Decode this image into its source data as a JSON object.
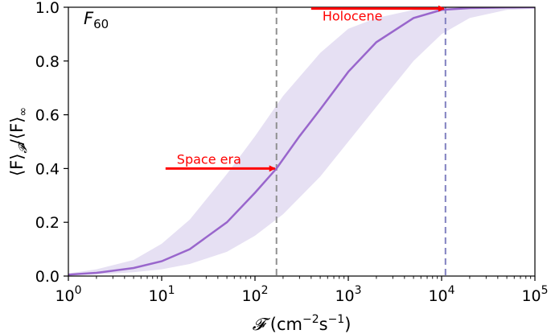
{
  "chart_data": {
    "type": "line",
    "panel_label": {
      "main": "F",
      "sub": "60"
    },
    "xlabel": {
      "symbol": "𝓕",
      "text": " (cm",
      "exp1": "−2",
      "mid": "s",
      "exp2": "−1",
      "close": ")"
    },
    "ylabel": {
      "text": "⟨F⟩",
      "sub1": "𝓕",
      "mid": "/⟨F⟩",
      "sub2": "∞"
    },
    "x_scale": "log",
    "xlim": [
      1,
      100000
    ],
    "ylim": [
      0,
      1.0
    ],
    "x_ticks": [
      {
        "value": 1,
        "base": "10",
        "exp": "0"
      },
      {
        "value": 10,
        "base": "10",
        "exp": "1"
      },
      {
        "value": 100,
        "base": "10",
        "exp": "2"
      },
      {
        "value": 1000,
        "base": "10",
        "exp": "3"
      },
      {
        "value": 10000,
        "base": "10",
        "exp": "4"
      },
      {
        "value": 100000,
        "base": "10",
        "exp": "5"
      }
    ],
    "y_ticks": [
      {
        "value": 0.0,
        "label": "0.0"
      },
      {
        "value": 0.2,
        "label": "0.2"
      },
      {
        "value": 0.4,
        "label": "0.4"
      },
      {
        "value": 0.6,
        "label": "0.6"
      },
      {
        "value": 0.8,
        "label": "0.8"
      },
      {
        "value": 1.0,
        "label": "1.0"
      }
    ],
    "series": [
      {
        "color": "#9966cc",
        "x": [
          1,
          2,
          5,
          10,
          20,
          50,
          100,
          170,
          300,
          500,
          1000,
          2000,
          5000,
          10000,
          20000,
          50000,
          100000
        ],
        "y": [
          0.005,
          0.012,
          0.03,
          0.055,
          0.1,
          0.2,
          0.31,
          0.4,
          0.52,
          0.62,
          0.76,
          0.87,
          0.96,
          0.99,
          0.997,
          0.999,
          1.0
        ]
      }
    ],
    "band": {
      "color": "#e6e0f3",
      "x": [
        1,
        2,
        5,
        10,
        20,
        50,
        100,
        200,
        500,
        1000,
        2000,
        5000,
        10000,
        20000,
        50000,
        100000
      ],
      "lower": [
        0.003,
        0.006,
        0.014,
        0.025,
        0.045,
        0.09,
        0.15,
        0.23,
        0.37,
        0.5,
        0.63,
        0.8,
        0.9,
        0.96,
        0.99,
        0.995
      ],
      "upper": [
        0.01,
        0.025,
        0.06,
        0.12,
        0.21,
        0.38,
        0.52,
        0.67,
        0.83,
        0.92,
        0.96,
        0.99,
        0.998,
        1.0,
        1.0,
        1.0
      ]
    },
    "vlines": [
      {
        "x": 170,
        "color": "#909090"
      },
      {
        "x": 11000,
        "color": "#8080c0"
      }
    ],
    "annotations": [
      {
        "text": "Space era",
        "x_text": 11,
        "y": 0.4,
        "x_arrow_end": 170,
        "color": "#ff0000"
      },
      {
        "text": "Holocene",
        "x_text": 400,
        "y": 0.995,
        "x_arrow_end": 11000,
        "color": "#ff0000"
      }
    ]
  }
}
